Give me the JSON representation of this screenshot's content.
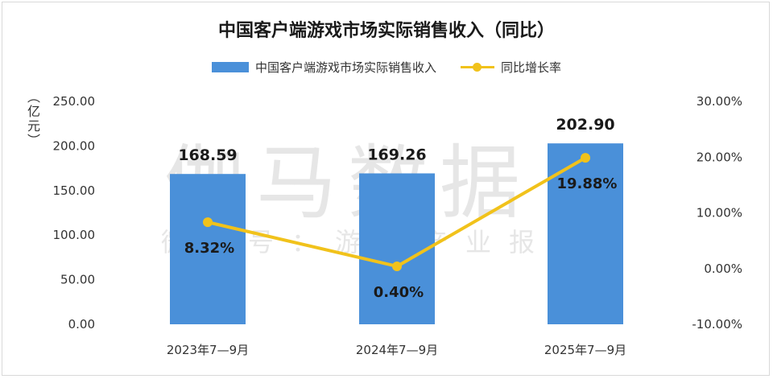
{
  "chart_data": {
    "type": "bar",
    "title": "中国客户端游戏市场实际销售收入（同比）",
    "categories": [
      "2023年7—9月",
      "2024年7—9月",
      "2025年7—9月"
    ],
    "series": [
      {
        "name": "中国客户端游戏市场实际销售收入",
        "type": "bar",
        "axis": "left",
        "color": "#4a90d9",
        "values": [
          168.59,
          169.26,
          202.9
        ],
        "labels": [
          "168.59",
          "169.26",
          "202.90"
        ]
      },
      {
        "name": "同比增长率",
        "type": "line",
        "axis": "right",
        "color": "#f1c21b",
        "values": [
          8.32,
          0.4,
          19.88
        ],
        "labels": [
          "8.32%",
          "0.40%",
          "19.88%"
        ]
      }
    ],
    "ylabel": "（亿元）",
    "ylim": [
      0,
      250
    ],
    "yticks": [
      "0.00",
      "50.00",
      "100.00",
      "150.00",
      "200.00",
      "250.00"
    ],
    "y2lim": [
      -10,
      30
    ],
    "y2ticks": [
      "-10.00%",
      "0.00%",
      "10.00%",
      "20.00%",
      "30.00%"
    ],
    "legend_position": "top",
    "grid": false
  },
  "watermark": {
    "main": "伽马数据",
    "sub": "微信号：游戏产业报告"
  }
}
